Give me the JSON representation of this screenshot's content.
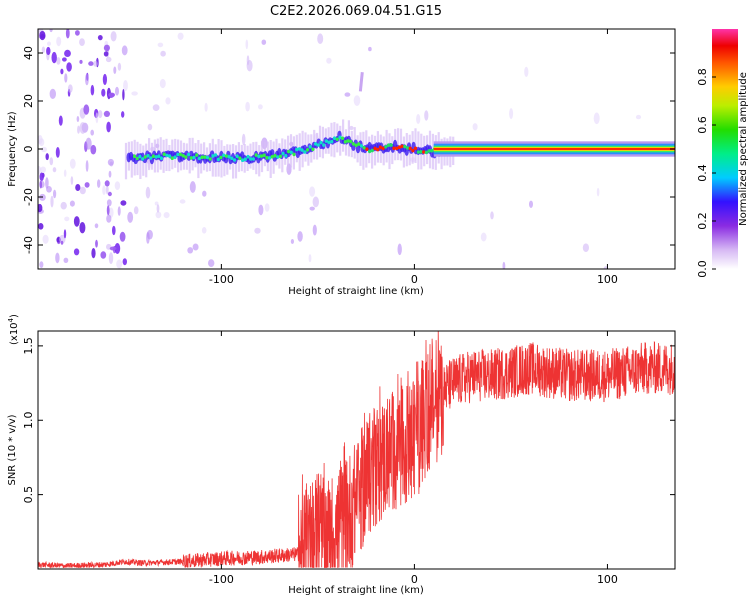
{
  "title": "C2E2.2026.069.04.51.G15",
  "chart_data": [
    {
      "type": "heatmap",
      "xlabel": "Height of straight line (km)",
      "ylabel": "Frequency (Hz)",
      "xlim": [
        -195,
        135
      ],
      "ylim": [
        -50,
        50
      ],
      "x_ticks": [
        -100,
        0,
        100
      ],
      "y_ticks": [
        -40,
        -20,
        0,
        20,
        40
      ],
      "colorbar": {
        "label": "Normalized spectral amplitude",
        "range": [
          0,
          1
        ],
        "ticks": [
          0.0,
          0.2,
          0.4,
          0.6,
          0.8
        ]
      },
      "ridge": {
        "description_values": "dominant frequency vs height",
        "x": [
          -145,
          -130,
          -110,
          -90,
          -75,
          -65,
          -55,
          -45,
          -38,
          -32,
          -25,
          -18,
          -10,
          -5,
          0,
          5,
          10,
          20,
          40,
          80,
          135
        ],
        "y": [
          -4,
          -3,
          -3,
          -4,
          -3,
          -2,
          0,
          3,
          5,
          2,
          0,
          0,
          1,
          0,
          0,
          -1,
          -1,
          0,
          0,
          0,
          0
        ]
      }
    },
    {
      "type": "line",
      "xlabel": "Height of straight line (km)",
      "ylabel": "SNR (10 * v/v)",
      "y_multiplier_label": "(x10",
      "y_multiplier_exp": "4",
      "xlim": [
        -195,
        135
      ],
      "ylim": [
        0,
        1.6
      ],
      "x_ticks": [
        -100,
        0,
        100
      ],
      "y_ticks": [
        0.5,
        1.0,
        1.5
      ],
      "y_tick_labels": [
        "0.5",
        "1.0",
        "1.5"
      ],
      "color": "#ee3333",
      "series_envelope": {
        "x": [
          -195,
          -180,
          -160,
          -150,
          -140,
          -120,
          -100,
          -80,
          -60,
          -50,
          -40,
          -30,
          -25,
          -20,
          -15,
          -10,
          -5,
          0,
          5,
          10,
          15,
          20,
          30,
          40,
          60,
          80,
          100,
          120,
          135
        ],
        "y": [
          0.03,
          0.02,
          0.03,
          0.05,
          0.04,
          0.05,
          0.07,
          0.08,
          0.1,
          0.16,
          0.25,
          0.45,
          0.6,
          0.7,
          0.75,
          0.8,
          0.82,
          0.85,
          1.0,
          1.1,
          1.2,
          1.25,
          1.3,
          1.3,
          1.35,
          1.3,
          1.3,
          1.35,
          1.35
        ]
      }
    }
  ]
}
